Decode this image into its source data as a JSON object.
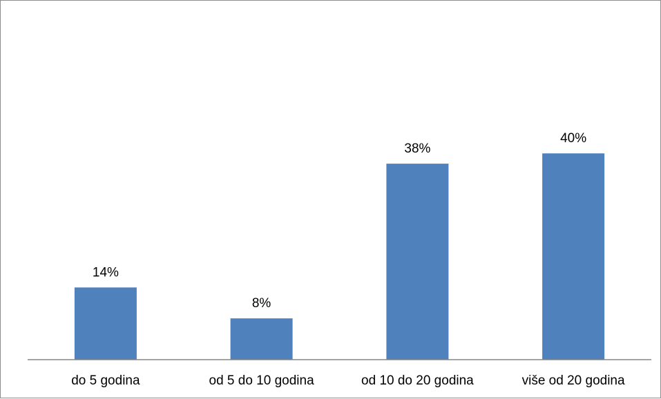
{
  "chart_data": {
    "type": "bar",
    "categories": [
      "do 5 godina",
      "od 5 do 10 godina",
      "od 10 do 20 godina",
      "više od 20 godina"
    ],
    "values": [
      14,
      8,
      38,
      40
    ],
    "data_labels": [
      "14%",
      "8%",
      "38%",
      "40%"
    ],
    "unit": "%",
    "title": "",
    "xlabel": "",
    "ylabel": "",
    "ylim": [
      0,
      45
    ],
    "grid": false,
    "legend": "none",
    "bar_color": "#4f81bd",
    "axis_color": "#868686"
  }
}
